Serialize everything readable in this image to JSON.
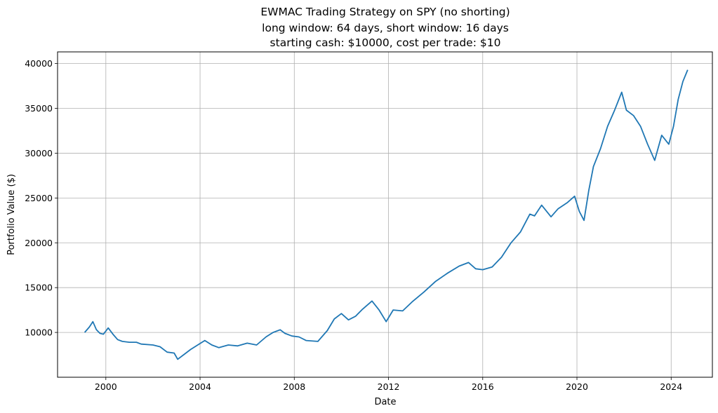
{
  "chart_data": {
    "type": "line",
    "title_lines": [
      "EWMAC Trading Strategy on SPY (no shorting)",
      "long window: 64 days, short window: 16 days",
      "starting cash: $10000, cost per trade: $10"
    ],
    "xlabel": "Date",
    "ylabel": "Portfolio Value ($)",
    "grid": true,
    "legend": "none",
    "xlim": [
      1997.95,
      2025.75
    ],
    "ylim": [
      5000,
      41300
    ],
    "x_ticks": [
      2000,
      2004,
      2008,
      2012,
      2016,
      2020,
      2024
    ],
    "x_tick_labels": [
      "2000",
      "2004",
      "2008",
      "2012",
      "2016",
      "2020",
      "2024"
    ],
    "y_ticks": [
      10000,
      15000,
      20000,
      25000,
      30000,
      35000,
      40000
    ],
    "y_tick_labels": [
      "10000",
      "15000",
      "20000",
      "25000",
      "30000",
      "35000",
      "40000"
    ],
    "line_color": "#1f77b4",
    "series": [
      {
        "x": [
          1999.1,
          1999.3,
          1999.45,
          1999.6,
          1999.75,
          1999.9,
          2000.1,
          2000.3,
          2000.5,
          2000.7,
          2001.0,
          2001.3,
          2001.5,
          2002.0,
          2002.3,
          2002.6,
          2002.9,
          2003.05,
          2003.3,
          2003.6,
          2003.9,
          2004.2,
          2004.5,
          2004.8,
          2005.2,
          2005.6,
          2006.0,
          2006.4,
          2006.8,
          2007.1,
          2007.4,
          2007.6,
          2007.9,
          2008.2,
          2008.5,
          2009.0,
          2009.4,
          2009.7,
          2010.0,
          2010.3,
          2010.6,
          2010.9,
          2011.3,
          2011.6,
          2011.9,
          2012.2,
          2012.6,
          2013.0,
          2013.5,
          2014.0,
          2014.5,
          2015.0,
          2015.4,
          2015.7,
          2016.0,
          2016.4,
          2016.8,
          2017.2,
          2017.6,
          2018.0,
          2018.2,
          2018.5,
          2018.9,
          2019.2,
          2019.6,
          2019.9,
          2020.1,
          2020.3,
          2020.5,
          2020.7,
          2021.0,
          2021.3,
          2021.6,
          2021.9,
          2022.1,
          2022.4,
          2022.7,
          2023.0,
          2023.3,
          2023.6,
          2023.9,
          2024.1,
          2024.3,
          2024.5,
          2024.7
        ],
        "values": [
          10000,
          10600,
          11200,
          10300,
          9900,
          9800,
          10500,
          9800,
          9200,
          9000,
          8900,
          8900,
          8700,
          8600,
          8400,
          7800,
          7700,
          7000,
          7500,
          8100,
          8600,
          9100,
          8600,
          8300,
          8600,
          8500,
          8800,
          8600,
          9500,
          10000,
          10300,
          9900,
          9600,
          9500,
          9100,
          9000,
          10200,
          11500,
          12100,
          11400,
          11800,
          12600,
          13500,
          12500,
          11200,
          12500,
          12400,
          13400,
          14500,
          15700,
          16600,
          17400,
          17800,
          17100,
          17000,
          17300,
          18400,
          20000,
          21200,
          23200,
          23000,
          24200,
          22900,
          23800,
          24500,
          25200,
          23500,
          22500,
          25800,
          28500,
          30500,
          33000,
          34800,
          36800,
          34800,
          34200,
          33000,
          31000,
          29200,
          32000,
          31000,
          33000,
          36000,
          38000,
          39300
        ]
      }
    ]
  }
}
